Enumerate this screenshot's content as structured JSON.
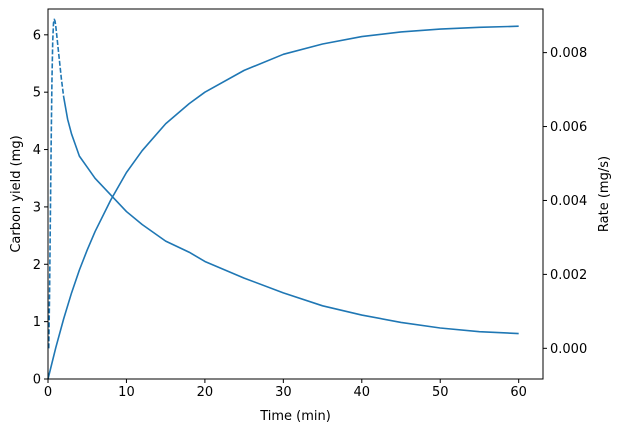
{
  "chart_data": {
    "type": "line",
    "title": "",
    "xlabel": "Time (min)",
    "ylabel_left": "Carbon yield (mg)",
    "ylabel_right": "Rate (mg/s)",
    "xlim": [
      0,
      63.1
    ],
    "ylim_left": [
      0,
      6.45
    ],
    "ylim_right": [
      -0.00083,
      0.00918
    ],
    "x_ticks": [
      0,
      10,
      20,
      30,
      40,
      50,
      60
    ],
    "y_left_ticks": [
      0,
      1,
      2,
      3,
      4,
      5,
      6
    ],
    "y_right_ticks": [
      0.0,
      0.002,
      0.004,
      0.006,
      0.008
    ],
    "y_right_tick_labels": [
      "0.000",
      "0.002",
      "0.004",
      "0.006",
      "0.008"
    ],
    "grid": false,
    "legend": "none",
    "color": "#1f77b4",
    "series": [
      {
        "axis": "left",
        "style": "solid",
        "x": [
          0,
          1,
          2,
          3,
          4,
          5,
          6,
          8,
          10,
          12,
          15,
          18,
          20,
          25,
          30,
          35,
          40,
          45,
          50,
          55,
          60
        ],
        "values": [
          0.0,
          0.55,
          1.05,
          1.5,
          1.9,
          2.25,
          2.57,
          3.12,
          3.6,
          3.98,
          4.45,
          4.8,
          5.0,
          5.38,
          5.66,
          5.84,
          5.97,
          6.05,
          6.1,
          6.13,
          6.15
        ]
      },
      {
        "axis": "right",
        "style": "dashed",
        "x": [
          0.1,
          0.2,
          0.3,
          0.4,
          0.5,
          0.6,
          0.7,
          0.8,
          0.9,
          1.0,
          1.1,
          1.3,
          1.5,
          1.7,
          2.0
        ],
        "values": [
          0.0,
          0.0015,
          0.0035,
          0.0055,
          0.0072,
          0.0083,
          0.0088,
          0.0089,
          0.00885,
          0.0087,
          0.0085,
          0.0081,
          0.0077,
          0.0073,
          0.0068
        ]
      },
      {
        "axis": "right",
        "style": "solid",
        "x": [
          2,
          2.5,
          3,
          3.5,
          4,
          5,
          6,
          8,
          10,
          12,
          15,
          18,
          20,
          25,
          30,
          35,
          40,
          45,
          50,
          55,
          60
        ],
        "values": [
          0.0068,
          0.0062,
          0.0058,
          0.0055,
          0.0052,
          0.0049,
          0.0046,
          0.00415,
          0.0037,
          0.00335,
          0.0029,
          0.0026,
          0.00235,
          0.0019,
          0.0015,
          0.00115,
          0.0009,
          0.0007,
          0.00055,
          0.00045,
          0.0004
        ]
      }
    ]
  }
}
